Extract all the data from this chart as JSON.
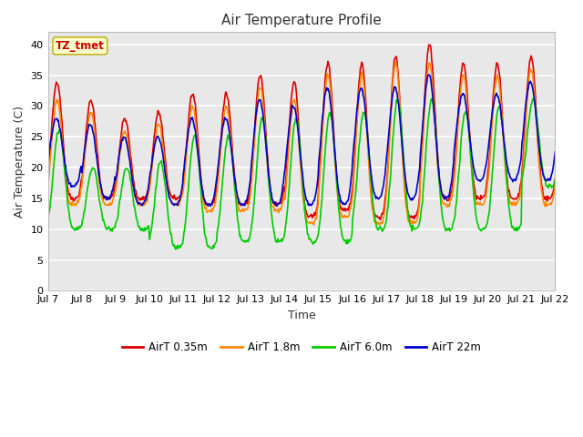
{
  "title": "Air Temperature Profile",
  "xlabel": "Time",
  "ylabel": "Air Temperature (C)",
  "ylim": [
    0,
    42
  ],
  "yticks": [
    0,
    5,
    10,
    15,
    20,
    25,
    30,
    35,
    40
  ],
  "xtick_labels": [
    "Jul 7",
    "Jul 8",
    "Jul 9",
    "Jul 10",
    "Jul 11",
    "Jul 12",
    "Jul 13",
    "Jul 14",
    "Jul 15",
    "Jul 16",
    "Jul 17",
    "Jul 18",
    "Jul 19",
    "Jul 20",
    "Jul 21",
    "Jul 22"
  ],
  "n_days": 15,
  "series_names": [
    "AirT 0.35m",
    "AirT 1.8m",
    "AirT 6.0m",
    "AirT 22m"
  ],
  "series_colors": [
    "#dd0000",
    "#ff8800",
    "#00cc00",
    "#0000cc"
  ],
  "series_lw": [
    1.2,
    1.2,
    1.2,
    1.2
  ],
  "annotation_text": "TZ_tmet",
  "annotation_color": "#cc0000",
  "annotation_bg": "#ffffcc",
  "annotation_edge": "#bbaa00",
  "fig_bg": "#ffffff",
  "plot_bg": "#e8e8e8",
  "grid_color": "#ffffff",
  "title_fontsize": 11,
  "label_fontsize": 9,
  "tick_fontsize": 8,
  "peak_red": [
    34,
    31,
    28,
    29,
    32,
    32,
    35,
    34,
    37,
    37,
    38,
    40,
    37,
    37,
    38
  ],
  "min_red": [
    15,
    15,
    15,
    15,
    14,
    14,
    14,
    12,
    13,
    12,
    12,
    15,
    15,
    15,
    15
  ],
  "peak_orange": [
    31,
    29,
    26,
    27,
    30,
    30,
    33,
    31,
    35,
    35,
    37,
    37,
    35,
    35,
    36
  ],
  "min_orange": [
    14,
    14,
    14,
    14,
    13,
    13,
    13,
    11,
    12,
    11,
    11,
    14,
    14,
    14,
    14
  ],
  "peak_green": [
    26,
    20,
    20,
    21,
    25,
    25,
    28,
    28,
    29,
    29,
    31,
    31,
    29,
    30,
    31
  ],
  "min_green": [
    10,
    10,
    10,
    7,
    7,
    8,
    8,
    8,
    8,
    10,
    10,
    10,
    10,
    10,
    17
  ],
  "peak_blue": [
    28,
    27,
    25,
    25,
    28,
    28,
    31,
    30,
    33,
    33,
    33,
    35,
    32,
    32,
    34
  ],
  "min_blue": [
    17,
    15,
    14,
    14,
    14,
    14,
    14,
    14,
    14,
    15,
    15,
    15,
    18,
    18,
    18
  ]
}
